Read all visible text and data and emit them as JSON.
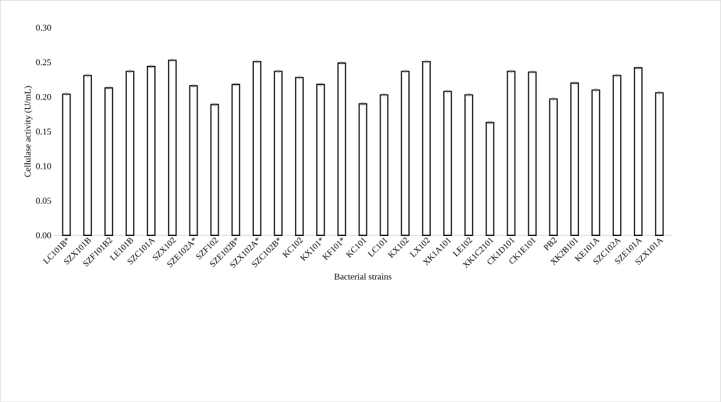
{
  "chart_data": {
    "type": "bar",
    "xlabel": "Bacterial strains",
    "ylabel": "Cellulase activity (U/mL)",
    "categories": [
      "LC101B*",
      "SZX101B",
      "SZF101B2",
      "LE101B",
      "SZC101A",
      "SZX102",
      "SZE102A*",
      "SZF102",
      "SZE102B*",
      "SZX102A*",
      "SZC102B*",
      "KC102",
      "KX101*",
      "KF101*",
      "KC101",
      "LC101",
      "KX102",
      "LX102",
      "XK1A101",
      "LE102",
      "XK1C2101",
      "CK1D101",
      "CK1E101",
      "PB2",
      "XK2B101",
      "KE101A",
      "SZC102A",
      "SZE101A",
      "SZX101A"
    ],
    "values": [
      0.204,
      0.231,
      0.213,
      0.237,
      0.244,
      0.253,
      0.216,
      0.189,
      0.218,
      0.251,
      0.237,
      0.228,
      0.218,
      0.249,
      0.19,
      0.203,
      0.237,
      0.251,
      0.208,
      0.203,
      0.163,
      0.237,
      0.236,
      0.197,
      0.22,
      0.21,
      0.231,
      0.242,
      0.206
    ],
    "errors": [
      0.002,
      0.002,
      0.002,
      0.002,
      0.002,
      0.002,
      0.002,
      0.002,
      0.002,
      0.002,
      0.002,
      0.002,
      0.002,
      0.002,
      0.002,
      0.002,
      0.002,
      0.002,
      0.002,
      0.002,
      0.002,
      0.002,
      0.002,
      0.002,
      0.002,
      0.002,
      0.002,
      0.002,
      0.002
    ],
    "color": "#ffffff",
    "ylim": [
      0,
      0.3
    ],
    "yticks": [
      {
        "value": 0,
        "label": "0.00"
      },
      {
        "value": 0.05,
        "label": "0.05"
      },
      {
        "value": 0.1,
        "label": "0.10"
      },
      {
        "value": 0.15,
        "label": "0.15"
      },
      {
        "value": 0.2,
        "label": "0.20"
      },
      {
        "value": 0.25,
        "label": "0.25"
      },
      {
        "value": 0.3,
        "label": "0.30"
      }
    ],
    "grid": false
  }
}
